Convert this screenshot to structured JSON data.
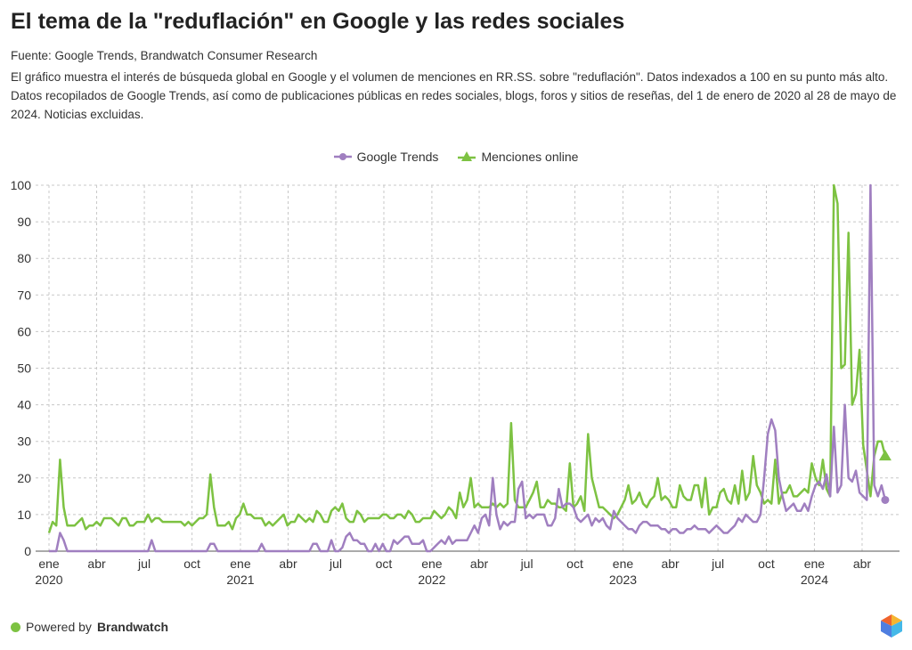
{
  "header": {
    "title": "El tema de la \"reduflación\" en Google y las redes sociales",
    "source": "Fuente: Google Trends, Brandwatch Consumer Research",
    "description": "El gráfico muestra el interés de búsqueda global en Google y el volumen de menciones en RR.SS. sobre \"reduflación\". Datos indexados a 100 en su punto más alto. Datos recopilados de Google Trends, así como de publicaciones públicas en redes sociales, blogs, foros y sitios de reseñas, del 1 de enero de 2020 al 28 de mayo de 2024. Noticias excluidas."
  },
  "footer": {
    "powered_by": "Powered by",
    "brand": "Brandwatch"
  },
  "chart_data": {
    "type": "line",
    "title": "El tema de la \"reduflación\" en Google y las redes sociales",
    "xlabel": "",
    "ylabel": "",
    "x_unit": "week index from first week of Jan 2020 (weekly)",
    "ylim": [
      0,
      100
    ],
    "yticks": [
      0,
      10,
      20,
      30,
      40,
      50,
      60,
      70,
      80,
      90,
      100
    ],
    "xticks": [
      {
        "month": "ene",
        "year": "2020",
        "week": 0
      },
      {
        "month": "abr",
        "year": "",
        "week": 13
      },
      {
        "month": "jul",
        "year": "",
        "week": 26
      },
      {
        "month": "oct",
        "year": "",
        "week": 39
      },
      {
        "month": "ene",
        "year": "2021",
        "week": 52.2
      },
      {
        "month": "abr",
        "year": "",
        "week": 65.2
      },
      {
        "month": "jul",
        "year": "",
        "week": 78.2
      },
      {
        "month": "oct",
        "year": "",
        "week": 91.3
      },
      {
        "month": "ene",
        "year": "2022",
        "week": 104.4
      },
      {
        "month": "abr",
        "year": "",
        "week": 117.3
      },
      {
        "month": "jul",
        "year": "",
        "week": 130.3
      },
      {
        "month": "oct",
        "year": "",
        "week": 143.4
      },
      {
        "month": "ene",
        "year": "2023",
        "week": 156.5
      },
      {
        "month": "abr",
        "year": "",
        "week": 169.4
      },
      {
        "month": "jul",
        "year": "",
        "week": 182.4
      },
      {
        "month": "oct",
        "year": "",
        "week": 195.6
      },
      {
        "month": "ene",
        "year": "2024",
        "week": 208.7
      },
      {
        "month": "abr",
        "year": "",
        "week": 221.7
      }
    ],
    "grid": true,
    "legend_position": "top-center",
    "series": [
      {
        "name": "Google Trends",
        "color": "#a07fc0",
        "marker": "circle",
        "values": [
          0,
          0,
          0,
          5,
          3,
          0,
          0,
          0,
          0,
          0,
          0,
          0,
          0,
          0,
          0,
          0,
          0,
          0,
          0,
          0,
          0,
          0,
          0,
          0,
          0,
          0,
          0,
          0,
          3,
          0,
          0,
          0,
          0,
          0,
          0,
          0,
          0,
          0,
          0,
          0,
          0,
          0,
          0,
          0,
          2,
          2,
          0,
          0,
          0,
          0,
          0,
          0,
          0,
          0,
          0,
          0,
          0,
          0,
          2,
          0,
          0,
          0,
          0,
          0,
          0,
          0,
          0,
          0,
          0,
          0,
          0,
          0,
          2,
          2,
          0,
          0,
          0,
          3,
          0,
          0,
          1,
          4,
          5,
          3,
          3,
          2,
          2,
          0,
          0,
          2,
          0,
          2,
          0,
          0,
          3,
          2,
          3,
          4,
          4,
          2,
          2,
          2,
          3,
          0,
          0,
          1,
          2,
          3,
          2,
          4,
          2,
          3,
          3,
          3,
          3,
          5,
          7,
          5,
          9,
          10,
          7,
          20,
          10,
          6,
          8,
          7,
          8,
          8,
          17,
          19,
          9,
          10,
          9,
          10,
          10,
          10,
          7,
          7,
          9,
          17,
          12,
          13,
          13,
          12,
          9,
          8,
          9,
          10,
          7,
          9,
          8,
          9,
          7,
          6,
          11,
          9,
          8,
          7,
          6,
          6,
          5,
          7,
          8,
          8,
          7,
          7,
          7,
          6,
          6,
          5,
          6,
          6,
          5,
          5,
          6,
          6,
          7,
          6,
          6,
          6,
          5,
          6,
          7,
          6,
          5,
          5,
          6,
          7,
          9,
          8,
          10,
          9,
          8,
          8,
          10,
          20,
          32,
          36,
          33,
          20,
          15,
          11,
          12,
          13,
          11,
          11,
          13,
          11,
          15,
          18,
          19,
          17,
          21,
          15,
          34,
          16,
          18,
          40,
          20,
          19,
          22,
          16,
          15,
          14,
          100,
          18,
          15,
          18,
          14
        ]
      },
      {
        "name": "Menciones online",
        "color": "#7dc242",
        "marker": "triangle",
        "values": [
          5,
          8,
          7,
          25,
          12,
          7,
          7,
          7,
          8,
          9,
          6,
          7,
          7,
          8,
          7,
          9,
          9,
          9,
          8,
          7,
          9,
          9,
          7,
          7,
          8,
          8,
          8,
          10,
          8,
          9,
          9,
          8,
          8,
          8,
          8,
          8,
          8,
          7,
          8,
          7,
          8,
          9,
          9,
          10,
          21,
          12,
          7,
          7,
          7,
          8,
          6,
          9,
          10,
          13,
          10,
          10,
          9,
          9,
          9,
          7,
          8,
          7,
          8,
          9,
          10,
          7,
          8,
          8,
          10,
          9,
          8,
          9,
          8,
          11,
          10,
          8,
          8,
          11,
          12,
          11,
          13,
          9,
          8,
          8,
          11,
          10,
          8,
          9,
          9,
          9,
          9,
          10,
          10,
          9,
          9,
          10,
          10,
          9,
          11,
          10,
          8,
          8,
          9,
          9,
          9,
          11,
          10,
          9,
          10,
          12,
          11,
          9,
          16,
          12,
          14,
          20,
          12,
          13,
          12,
          12,
          12,
          13,
          12,
          13,
          12,
          13,
          35,
          14,
          12,
          12,
          12,
          14,
          16,
          19,
          12,
          12,
          14,
          13,
          13,
          12,
          12,
          11,
          24,
          12,
          13,
          15,
          11,
          32,
          20,
          16,
          12,
          12,
          11,
          10,
          9,
          10,
          12,
          14,
          18,
          13,
          14,
          16,
          13,
          12,
          14,
          15,
          20,
          14,
          15,
          14,
          12,
          12,
          18,
          15,
          14,
          14,
          18,
          18,
          12,
          20,
          10,
          12,
          12,
          16,
          17,
          14,
          13,
          18,
          13,
          22,
          14,
          16,
          26,
          18,
          16,
          13,
          14,
          13,
          25,
          13,
          16,
          16,
          18,
          15,
          15,
          16,
          17,
          16,
          24,
          20,
          18,
          25,
          17,
          15,
          100,
          95,
          50,
          51,
          87,
          40,
          43,
          55,
          29,
          22,
          15,
          26,
          30,
          30,
          26
        ]
      }
    ]
  }
}
